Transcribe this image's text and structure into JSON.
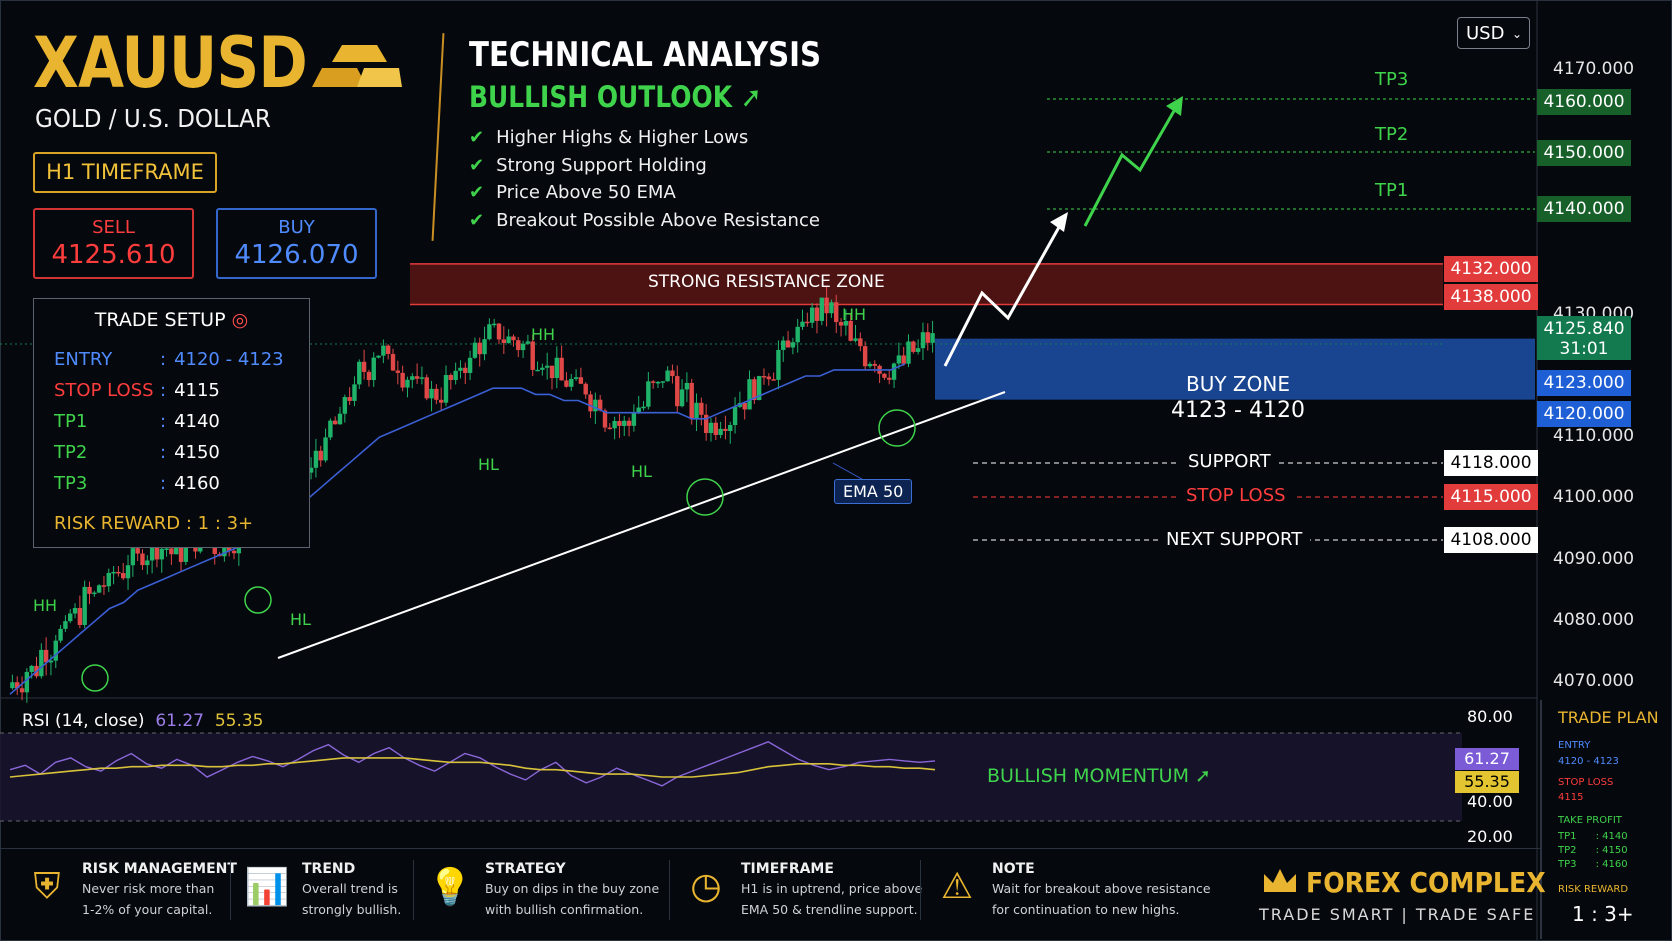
{
  "header": {
    "symbol": "XAUUSD",
    "pair_name": "GOLD / U.S. DOLLAR",
    "timeframe": "H1 TIMEFRAME",
    "sell_label": "SELL",
    "sell_price": "4125.610",
    "buy_label": "BUY",
    "buy_price": "4126.070",
    "currency_select": "USD"
  },
  "trade_setup": {
    "title": "TRADE SETUP",
    "rows": [
      {
        "key": "ENTRY",
        "sep": ":",
        "value": "4120 - 4123",
        "color": "#4f8bff"
      },
      {
        "key": "STOP LOSS",
        "sep": ":",
        "value": "4115",
        "color": "#ff3d3d"
      },
      {
        "key": "TP1",
        "sep": ":",
        "value": "4140",
        "color": "#3fd34c"
      },
      {
        "key": "TP2",
        "sep": ":",
        "value": "4150",
        "color": "#3fd34c"
      },
      {
        "key": "TP3",
        "sep": ":",
        "value": "4160",
        "color": "#3fd34c"
      }
    ],
    "risk_reward": "RISK REWARD : 1 : 3+"
  },
  "analysis": {
    "title": "TECHNICAL ANALYSIS",
    "outlook": "BULLISH OUTLOOK",
    "bullets": [
      "Higher Highs & Higher Lows",
      "Strong Support Holding",
      "Price Above 50 EMA",
      "Breakout Possible Above Resistance"
    ]
  },
  "chart_labels": {
    "resistance_zone": "STRONG RESISTANCE ZONE",
    "buy_zone_title": "BUY ZONE",
    "buy_zone_range": "4123 - 4120",
    "support": "SUPPORT",
    "stop_loss": "STOP LOSS",
    "next_support": "NEXT SUPPORT",
    "tp1": "TP1",
    "tp2": "TP2",
    "tp3": "TP3",
    "ema_tag": "EMA 50",
    "hh": "HH",
    "hl": "HL",
    "current_price": "4125.840",
    "countdown": "31:01"
  },
  "price_tags": {
    "tp3": "4160.000",
    "tp2": "4150.000",
    "tp1": "4140.000",
    "res_low": "4132.000",
    "res_high": "4138.000",
    "buy_high": "4123.000",
    "buy_low": "4120.000",
    "support": "4118.000",
    "stop": "4115.000",
    "next_support": "4108.000"
  },
  "price_axis": [
    "4170.000",
    "4130.000",
    "4110.000",
    "4100.000",
    "4090.000",
    "4080.000",
    "4070.000"
  ],
  "rsi": {
    "label": "RSI (14, close)",
    "value": "61.27",
    "signal": "55.35",
    "levels": [
      "80.00",
      "40.00",
      "20.00"
    ],
    "momentum": "BULLISH MOMENTUM"
  },
  "trade_plan": {
    "title": "TRADE PLAN",
    "entry_label": "ENTRY",
    "entry": "4120 - 4123",
    "stop_label": "STOP LOSS",
    "stop": "4115",
    "tp_label": "TAKE PROFIT",
    "tps": [
      "TP1      : 4140",
      "TP2      : 4150",
      "TP3      : 4160"
    ],
    "rr_label": "RISK REWARD",
    "rr": "1 : 3+"
  },
  "footer": [
    {
      "title": "RISK MANAGEMENT",
      "line1": "Never risk more than",
      "line2": "1-2% of your capital."
    },
    {
      "title": "TREND",
      "line1": "Overall trend is",
      "line2": "strongly bullish."
    },
    {
      "title": "STRATEGY",
      "line1": "Buy on dips in the buy zone",
      "line2": "with bullish confirmation."
    },
    {
      "title": "TIMEFRAME",
      "line1": "H1 is in uptrend, price above",
      "line2": "EMA 50 & trendline support."
    },
    {
      "title": "NOTE",
      "line1": "Wait for breakout above resistance",
      "line2": "for continuation to new highs."
    }
  ],
  "brand": {
    "name": "FOREX COMPLEX",
    "tagline": "TRADE SMART | TRADE SAFE"
  },
  "colors": {
    "gold": "#e9b530",
    "bull": "#1fb36a",
    "bear": "#e04848",
    "ema": "#3b5fd4",
    "rsi": "#8a67d8",
    "rsi_signal": "#d7c23a",
    "buy_zone": "#1c4fa8",
    "resistance": "#8a1f1f"
  },
  "chart_data": {
    "type": "line",
    "title": "",
    "price_series": {
      "name": "XAUUSD close",
      "values": [
        4070,
        4072,
        4075,
        4078,
        4081,
        4084,
        4086,
        4088,
        4090,
        4091,
        4092,
        4091,
        4093,
        4094,
        4092,
        4093,
        4095,
        4096,
        4098,
        4101,
        4104,
        4108,
        4112,
        4117,
        4121,
        4124,
        4122,
        4120,
        4118,
        4117,
        4119,
        4122,
        4125,
        4127,
        4126,
        4125,
        4123,
        4121,
        4119,
        4118,
        4116,
        4113,
        4112,
        4115,
        4118,
        4120,
        4117,
        4114,
        4112,
        4113,
        4116,
        4118,
        4121,
        4124,
        4127,
        4130,
        4131,
        4128,
        4125,
        4123,
        4121,
        4122,
        4124,
        4126
      ]
    },
    "ema50": [
      4068,
      4070,
      4072,
      4074,
      4076,
      4078,
      4080,
      4082,
      4083,
      4085,
      4086,
      4087,
      4088,
      4089,
      4090,
      4091,
      4092,
      4093,
      4094,
      4096,
      4098,
      4100,
      4102,
      4104,
      4106,
      4108,
      4110,
      4111,
      4112,
      4113,
      4114,
      4115,
      4116,
      4117,
      4118,
      4118,
      4118,
      4117,
      4117,
      4116,
      4116,
      4115,
      4114,
      4114,
      4114,
      4114,
      4114,
      4114,
      4113,
      4113,
      4114,
      4115,
      4116,
      4117,
      4118,
      4119,
      4120,
      4120,
      4121,
      4121,
      4121,
      4121,
      4121,
      4122
    ],
    "rsi_values": [
      55,
      58,
      52,
      60,
      63,
      57,
      54,
      61,
      66,
      59,
      56,
      62,
      58,
      50,
      55,
      60,
      64,
      61,
      57,
      62,
      68,
      72,
      65,
      60,
      66,
      70,
      63,
      58,
      54,
      60,
      66,
      63,
      57,
      52,
      48,
      55,
      60,
      51,
      46,
      50,
      56,
      52,
      48,
      44,
      50,
      54,
      58,
      62,
      66,
      70,
      74,
      68,
      62,
      58,
      55,
      57,
      60,
      61,
      62,
      61,
      60,
      61
    ],
    "rsi_signal_values": [
      50,
      51,
      52,
      53,
      54,
      55,
      56,
      56,
      57,
      57,
      58,
      58,
      58,
      57,
      57,
      58,
      58,
      59,
      59,
      60,
      61,
      62,
      63,
      63,
      63,
      63,
      63,
      62,
      61,
      60,
      60,
      60,
      59,
      58,
      56,
      55,
      55,
      54,
      53,
      52,
      52,
      52,
      51,
      50,
      50,
      50,
      51,
      52,
      53,
      55,
      57,
      58,
      59,
      59,
      59,
      58,
      58,
      57,
      57,
      56,
      56,
      55
    ],
    "annotations": [
      "HH",
      "HL",
      "HH",
      "HL",
      "HH",
      "HL",
      "HH"
    ],
    "ylim": [
      4065,
      4175
    ],
    "levels": {
      "tp3": 4160,
      "tp2": 4150,
      "tp1": 4140,
      "resistance": [
        4132,
        4138
      ],
      "buy_zone": [
        4120,
        4123
      ],
      "support": 4118,
      "stop_loss": 4115,
      "next_support": 4108
    }
  }
}
